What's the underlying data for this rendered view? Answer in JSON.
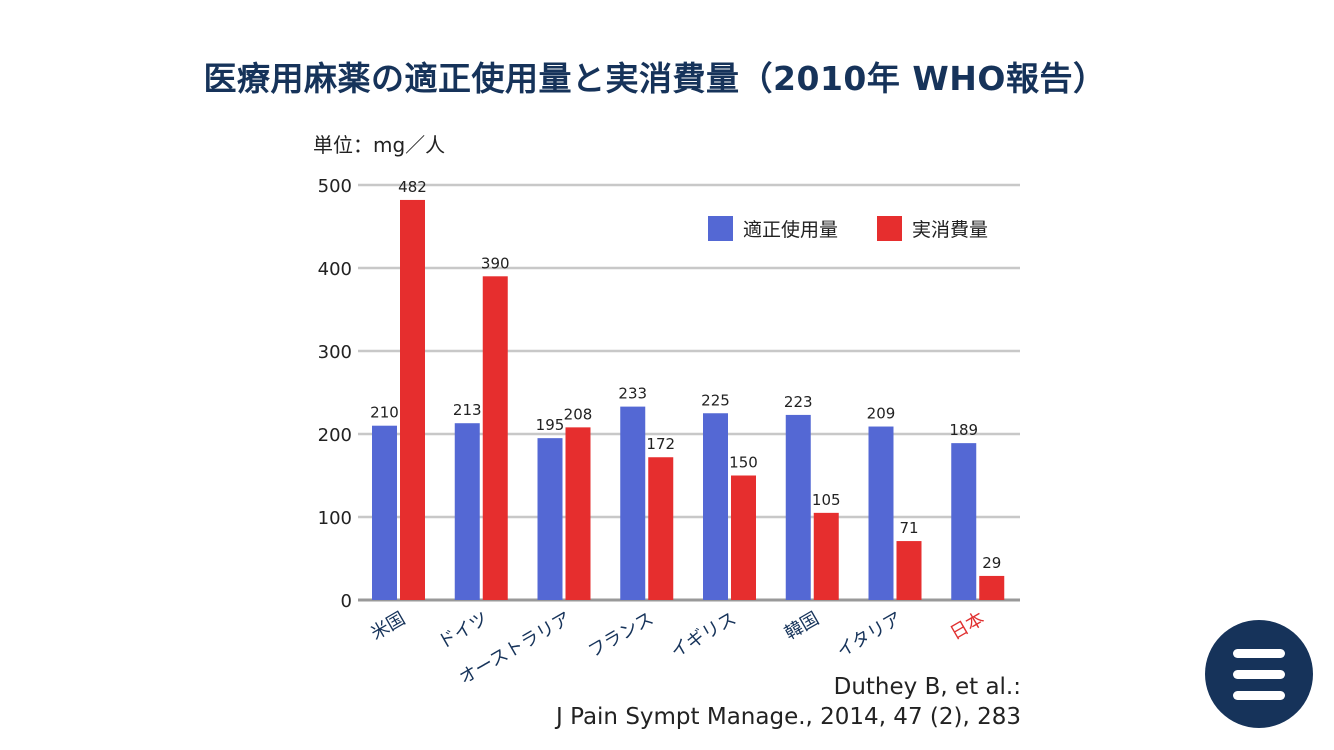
{
  "title": "医療用麻薬の適正使用量と実消費量（2010年 WHO報告）",
  "chart_data": {
    "type": "bar",
    "unit_label": "単位：mg／人",
    "categories": [
      "米国",
      "ドイツ",
      "オーストラリア",
      "フランス",
      "イギリス",
      "韓国",
      "イタリア",
      "日本"
    ],
    "category_label_colors": [
      "#16335a",
      "#16335a",
      "#16335a",
      "#16335a",
      "#16335a",
      "#16335a",
      "#16335a",
      "#e03030"
    ],
    "series": [
      {
        "name": "適正使用量",
        "color": "#5468d4",
        "values": [
          210,
          213,
          195,
          233,
          225,
          223,
          209,
          189
        ]
      },
      {
        "name": "実消費量",
        "color": "#e62e2e",
        "values": [
          482,
          390,
          208,
          172,
          150,
          105,
          71,
          29
        ]
      }
    ],
    "ylim": [
      0,
      500
    ],
    "yticks": [
      0,
      100,
      200,
      300,
      400,
      500
    ],
    "legend_position": "top-right",
    "grid": true
  },
  "citation": {
    "line1": "Duthey B, et al.:",
    "line2": "J Pain Sympt Manage., 2014, 47 (2), 283"
  },
  "menu": {
    "icon": "hamburger-menu-icon"
  }
}
